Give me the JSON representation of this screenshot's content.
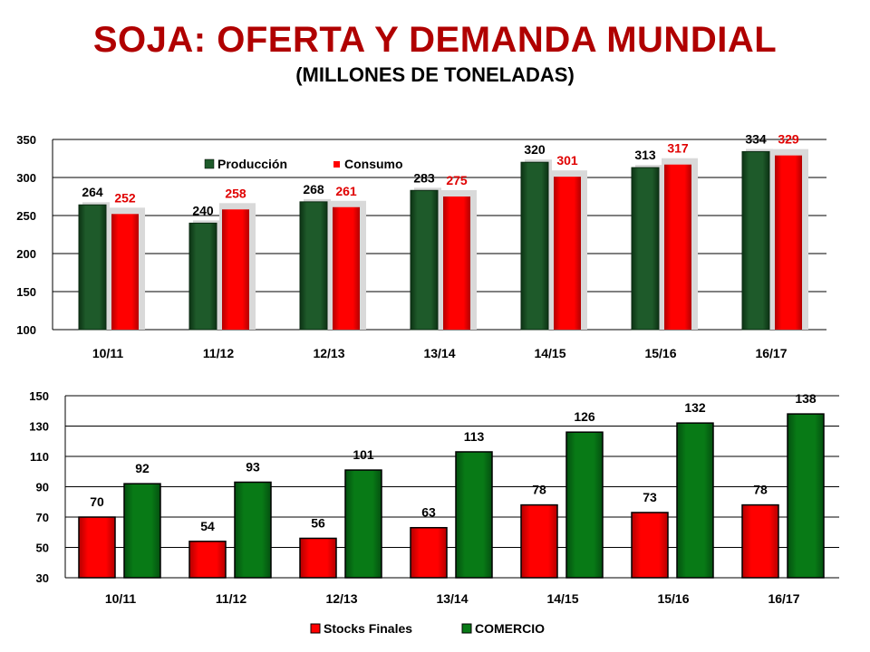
{
  "page": {
    "title": "SOJA: OFERTA Y DEMANDA MUNDIAL",
    "subtitle": "(MILLONES DE TONELADAS)"
  },
  "colors": {
    "green": "#1e5a2a",
    "green_dark": "#0c3314",
    "red": "#ff0000",
    "red_dark": "#b30000",
    "green_bright": "#087a16",
    "red_label": "#e00000"
  },
  "chart_data": [
    {
      "type": "bar",
      "categories": [
        "10/11",
        "11/12",
        "12/13",
        "13/14",
        "14/15",
        "15/16",
        "16/17"
      ],
      "series": [
        {
          "name": "Producción",
          "values": [
            264,
            240,
            268,
            283,
            320,
            313,
            334
          ]
        },
        {
          "name": "Consumo",
          "values": [
            252,
            258,
            261,
            275,
            301,
            317,
            329
          ]
        }
      ],
      "ylim": [
        100,
        350
      ],
      "yticks": [
        100,
        150,
        200,
        250,
        300,
        350
      ],
      "grid": true,
      "legend": "top-left"
    },
    {
      "type": "bar",
      "categories": [
        "10/11",
        "11/12",
        "12/13",
        "13/14",
        "14/15",
        "15/16",
        "16/17"
      ],
      "series": [
        {
          "name": "Stocks Finales",
          "values": [
            70,
            54,
            56,
            63,
            78,
            73,
            78
          ]
        },
        {
          "name": "COMERCIO",
          "values": [
            92,
            93,
            101,
            113,
            126,
            132,
            138
          ]
        }
      ],
      "ylim": [
        30,
        150
      ],
      "yticks": [
        30,
        50,
        70,
        90,
        110,
        130,
        150
      ],
      "grid": true,
      "legend": "bottom"
    }
  ]
}
